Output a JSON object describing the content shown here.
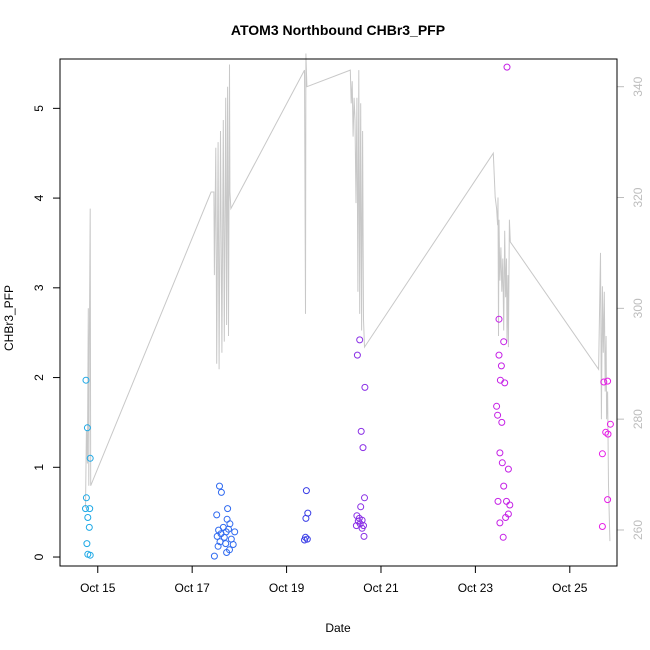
{
  "chart_data": {
    "type": "scatter",
    "title": "ATOM3 Northbound CHBr3_PFP",
    "xlabel": "Date",
    "ylabel": "CHBr3_PFP",
    "x_unit": "day-of-October",
    "xlim": [
      14.2,
      26.0
    ],
    "ylim": [
      -0.1,
      5.55
    ],
    "x_ticks": [
      {
        "value": 15,
        "label": "Oct 15"
      },
      {
        "value": 17,
        "label": "Oct 17"
      },
      {
        "value": 19,
        "label": "Oct 19"
      },
      {
        "value": 21,
        "label": "Oct 21"
      },
      {
        "value": 23,
        "label": "Oct 23"
      },
      {
        "value": 25,
        "label": "Oct 25"
      }
    ],
    "y_ticks": [
      0,
      1,
      2,
      3,
      4,
      5
    ],
    "y2_ticks": [
      260,
      280,
      300,
      320,
      340
    ],
    "y2lim": [
      253.5,
      345.0
    ],
    "grid": false,
    "legend": "none",
    "line_color": "#c8c8c8",
    "series": [
      {
        "color": "#1fa9e6",
        "points": [
          [
            14.75,
            1.97
          ],
          [
            14.78,
            1.44
          ],
          [
            14.84,
            1.1
          ],
          [
            14.76,
            0.66
          ],
          [
            14.74,
            0.54
          ],
          [
            14.83,
            0.54
          ],
          [
            14.79,
            0.44
          ],
          [
            14.82,
            0.33
          ],
          [
            14.77,
            0.15
          ],
          [
            14.79,
            0.03
          ],
          [
            14.84,
            0.02
          ]
        ]
      },
      {
        "color": "#2f6af0",
        "points": [
          [
            17.58,
            0.79
          ],
          [
            17.62,
            0.72
          ],
          [
            17.75,
            0.54
          ],
          [
            17.52,
            0.47
          ],
          [
            17.74,
            0.42
          ],
          [
            17.8,
            0.37
          ],
          [
            17.66,
            0.33
          ],
          [
            17.77,
            0.31
          ],
          [
            17.56,
            0.3
          ],
          [
            17.72,
            0.28
          ],
          [
            17.9,
            0.28
          ],
          [
            17.61,
            0.26
          ],
          [
            17.53,
            0.23
          ],
          [
            17.68,
            0.22
          ],
          [
            17.83,
            0.2
          ],
          [
            17.59,
            0.17
          ],
          [
            17.71,
            0.15
          ],
          [
            17.87,
            0.14
          ],
          [
            17.55,
            0.12
          ],
          [
            17.79,
            0.08
          ],
          [
            17.73,
            0.05
          ],
          [
            17.47,
            0.01
          ]
        ]
      },
      {
        "color": "#3a3ee6",
        "points": [
          [
            19.42,
            0.74
          ],
          [
            19.45,
            0.49
          ],
          [
            19.41,
            0.43
          ],
          [
            19.4,
            0.22
          ],
          [
            19.44,
            0.2
          ],
          [
            19.38,
            0.19
          ]
        ]
      },
      {
        "color": "#8a2fe6",
        "points": [
          [
            20.55,
            2.42
          ],
          [
            20.5,
            2.25
          ],
          [
            20.66,
            1.89
          ],
          [
            20.58,
            1.4
          ],
          [
            20.62,
            1.22
          ],
          [
            20.65,
            0.66
          ],
          [
            20.57,
            0.56
          ],
          [
            20.49,
            0.46
          ],
          [
            20.54,
            0.43
          ],
          [
            20.6,
            0.41
          ],
          [
            20.52,
            0.4
          ],
          [
            20.56,
            0.37
          ],
          [
            20.63,
            0.35
          ],
          [
            20.48,
            0.35
          ],
          [
            20.6,
            0.32
          ],
          [
            20.64,
            0.23
          ]
        ]
      },
      {
        "color": "#c520e6",
        "points": [
          [
            23.67,
            5.46
          ],
          [
            23.5,
            2.65
          ],
          [
            23.6,
            2.4
          ],
          [
            23.5,
            2.25
          ],
          [
            23.55,
            2.13
          ],
          [
            23.53,
            1.97
          ],
          [
            23.62,
            1.94
          ],
          [
            23.45,
            1.68
          ],
          [
            23.47,
            1.58
          ],
          [
            23.56,
            1.5
          ],
          [
            23.52,
            1.16
          ],
          [
            23.57,
            1.05
          ],
          [
            23.7,
            0.98
          ],
          [
            23.6,
            0.79
          ],
          [
            23.48,
            0.62
          ],
          [
            23.66,
            0.62
          ],
          [
            23.73,
            0.58
          ],
          [
            23.7,
            0.48
          ],
          [
            23.64,
            0.44
          ],
          [
            23.52,
            0.38
          ],
          [
            23.59,
            0.22
          ]
        ]
      },
      {
        "color": "#e61ee6",
        "points": [
          [
            25.72,
            1.95
          ],
          [
            25.8,
            1.96
          ],
          [
            25.76,
            1.39
          ],
          [
            25.81,
            1.37
          ],
          [
            25.86,
            1.48
          ],
          [
            25.69,
            1.15
          ],
          [
            25.8,
            0.64
          ],
          [
            25.69,
            0.34
          ]
        ]
      }
    ],
    "secondary_line": [
      [
        14.74,
        264
      ],
      [
        14.76,
        278
      ],
      [
        14.78,
        272
      ],
      [
        14.8,
        300
      ],
      [
        14.81,
        268
      ],
      [
        14.82,
        292
      ],
      [
        14.84,
        318
      ],
      [
        14.85,
        268
      ],
      [
        17.4,
        321
      ],
      [
        17.46,
        321
      ],
      [
        17.47,
        306
      ],
      [
        17.5,
        329
      ],
      [
        17.52,
        290
      ],
      [
        17.55,
        330
      ],
      [
        17.57,
        289
      ],
      [
        17.6,
        332
      ],
      [
        17.63,
        292
      ],
      [
        17.66,
        334
      ],
      [
        17.68,
        294
      ],
      [
        17.71,
        338
      ],
      [
        17.73,
        297
      ],
      [
        17.75,
        340
      ],
      [
        17.77,
        295
      ],
      [
        17.79,
        344
      ],
      [
        17.8,
        321
      ],
      [
        17.82,
        318
      ],
      [
        19.38,
        343
      ],
      [
        19.4,
        299
      ],
      [
        19.41,
        346
      ],
      [
        19.43,
        340
      ],
      [
        20.35,
        343
      ],
      [
        20.37,
        337
      ],
      [
        20.39,
        341
      ],
      [
        20.41,
        331
      ],
      [
        20.43,
        338
      ],
      [
        20.45,
        334
      ],
      [
        20.47,
        319
      ],
      [
        20.49,
        338
      ],
      [
        20.51,
        303
      ],
      [
        20.53,
        343
      ],
      [
        20.55,
        299
      ],
      [
        20.57,
        337
      ],
      [
        20.59,
        296
      ],
      [
        20.61,
        332
      ],
      [
        20.63,
        298
      ],
      [
        20.65,
        293
      ],
      [
        23.38,
        328
      ],
      [
        23.42,
        320
      ],
      [
        23.45,
        318
      ],
      [
        23.47,
        315
      ],
      [
        23.48,
        320
      ],
      [
        23.49,
        295
      ],
      [
        23.5,
        316
      ],
      [
        23.52,
        305
      ],
      [
        23.54,
        311
      ],
      [
        23.56,
        303
      ],
      [
        23.58,
        309
      ],
      [
        23.6,
        296
      ],
      [
        23.62,
        314
      ],
      [
        23.64,
        302
      ],
      [
        23.66,
        309
      ],
      [
        23.67,
        294
      ],
      [
        23.69,
        306
      ],
      [
        23.7,
        293
      ],
      [
        23.72,
        316
      ],
      [
        23.74,
        312
      ],
      [
        25.61,
        289
      ],
      [
        25.65,
        310
      ],
      [
        25.67,
        280
      ],
      [
        25.69,
        304
      ],
      [
        25.71,
        292
      ],
      [
        25.73,
        303
      ],
      [
        25.75,
        285
      ],
      [
        25.77,
        295
      ],
      [
        25.78,
        280
      ],
      [
        25.8,
        285
      ],
      [
        25.82,
        268
      ],
      [
        25.85,
        258
      ]
    ]
  }
}
